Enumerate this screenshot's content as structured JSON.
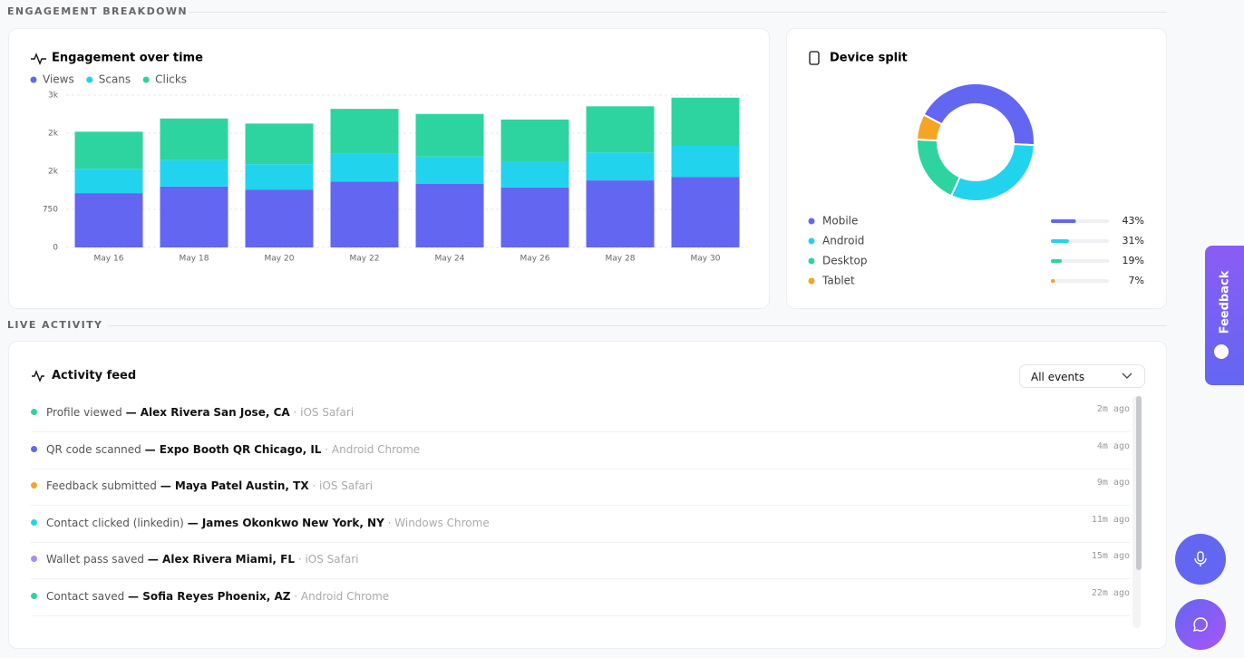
{
  "headings": {
    "engagement": "ENGAGEMENT BREAKDOWN",
    "live": "LIVE ACTIVITY"
  },
  "chart_data": [
    {
      "type": "bar",
      "stacked": true,
      "title": "Engagement over time",
      "categories": [
        "May 16",
        "May 18",
        "May 20",
        "May 22",
        "May 24",
        "May 26",
        "May 28",
        "May 30"
      ],
      "series": [
        {
          "name": "Views",
          "color": "#6366f1",
          "values": [
            1070,
            1200,
            1140,
            1300,
            1250,
            1180,
            1320,
            1390
          ]
        },
        {
          "name": "Scans",
          "color": "#22d3ee",
          "values": [
            480,
            520,
            500,
            550,
            540,
            500,
            550,
            610
          ]
        },
        {
          "name": "Clicks",
          "color": "#2dd4a0",
          "values": [
            730,
            820,
            800,
            880,
            840,
            840,
            910,
            950
          ]
        }
      ],
      "ylim": [
        0,
        3000
      ],
      "yticks": [
        0,
        750,
        {
          "value": 1500,
          "label": "2k"
        },
        {
          "value": 2250,
          "label": "2k"
        },
        {
          "value": 3000,
          "label": "3k"
        }
      ],
      "grid": true,
      "legend": "top-left"
    },
    {
      "type": "pie",
      "donut": true,
      "title": "Device split",
      "categories": [
        "Mobile",
        "Android",
        "Desktop",
        "Tablet"
      ],
      "values": [
        43,
        31,
        19,
        7
      ],
      "value_labels": [
        "43%",
        "31%",
        "19%",
        "7%"
      ],
      "colors": [
        "#6366f1",
        "#22d3ee",
        "#2dd4a0",
        "#f5a524"
      ]
    }
  ],
  "activity": {
    "title": "Activity feed",
    "filter": "All events",
    "events": [
      {
        "event": "Profile viewed",
        "actor": "— Alex Rivera",
        "location": "San Jose, CA",
        "device": "· iOS Safari",
        "time": "2m ago",
        "color": "#2dd4a0"
      },
      {
        "event": "QR code scanned",
        "actor": "— Expo Booth QR",
        "location": "Chicago, IL",
        "device": "· Android Chrome",
        "time": "4m ago",
        "color": "#6366f1"
      },
      {
        "event": "Feedback submitted",
        "actor": "— Maya Patel",
        "location": "Austin, TX",
        "device": "· iOS Safari",
        "time": "9m ago",
        "color": "#f5a524"
      },
      {
        "event": "Contact clicked (linkedin)",
        "actor": "— James Okonkwo",
        "location": "New York, NY",
        "device": "· Windows Chrome",
        "time": "11m ago",
        "color": "#22d3ee"
      },
      {
        "event": "Wallet pass saved",
        "actor": "— Alex Rivera",
        "location": "Miami, FL",
        "device": "· iOS Safari",
        "time": "15m ago",
        "color": "#a78bfa"
      },
      {
        "event": "Contact saved",
        "actor": "— Sofia Reyes",
        "location": "Phoenix, AZ",
        "device": "· Android Chrome",
        "time": "22m ago",
        "color": "#2dd4a0"
      }
    ]
  },
  "feedback_tab": "Feedback"
}
